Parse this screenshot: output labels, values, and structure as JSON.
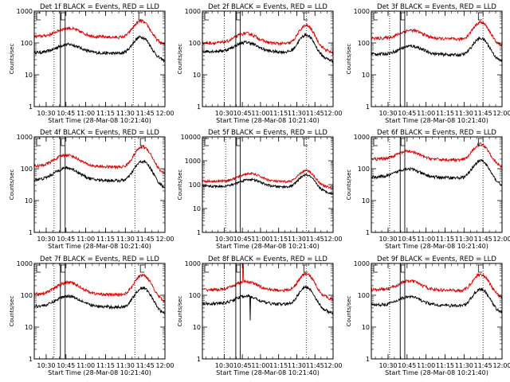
{
  "colors": {
    "background": "#ffffff",
    "axes": "#000000",
    "events": "#000000",
    "lld": "#e00000"
  },
  "chart_data": [
    {
      "id": "det1",
      "type": "line",
      "title": "Det 1f BLACK = Events, RED = LLD",
      "xlabel": "Start Time (28-Mar-08 10:21:40)",
      "ylabel": "Counts/sec",
      "y_scale": "log",
      "ylim": [
        1,
        1000
      ],
      "yticks": [
        "1",
        "10",
        "100",
        "1000"
      ],
      "xlim": [
        10.35,
        12.0
      ],
      "xticks": [
        "10:30",
        "10:45",
        "11:00",
        "11:15",
        "11:30",
        "11:45",
        "12:00"
      ],
      "dotted_markers": [
        10.6,
        11.6
      ],
      "boxed_interval": [
        10.68,
        10.74
      ],
      "flare_peak": 11.7,
      "series": [
        {
          "name": "Events",
          "color": "#000000",
          "base": 50,
          "bump_t": 10.78,
          "bump_amp": 40,
          "peak_amp": 110,
          "spike": null
        },
        {
          "name": "LLD",
          "color": "#e00000",
          "base": 160,
          "bump_t": 10.78,
          "bump_amp": 130,
          "peak_amp": 340,
          "spike": null
        }
      ]
    },
    {
      "id": "det2",
      "type": "line",
      "title": "Det 2f BLACK = Events, RED = LLD",
      "xlabel": "Start Time (28-Mar-08 10:21:40)",
      "ylabel": "Counts/sec",
      "y_scale": "log",
      "ylim": [
        1,
        1000
      ],
      "yticks": [
        "1",
        "10",
        "100",
        "1000"
      ],
      "xlim": [
        10.2,
        12.0
      ],
      "xticks": [
        "10:30",
        "10:45",
        "11:00",
        "11:15",
        "11:30",
        "11:45",
        "12:00"
      ],
      "dotted_markers": [
        10.5,
        11.63
      ],
      "boxed_interval": [
        10.66,
        10.72
      ],
      "flare_peak": 11.63,
      "series": [
        {
          "name": "Events",
          "color": "#000000",
          "base": 55,
          "bump_t": 10.8,
          "bump_amp": 50,
          "peak_amp": 130,
          "spike": null
        },
        {
          "name": "LLD",
          "color": "#e00000",
          "base": 100,
          "bump_t": 10.8,
          "bump_amp": 100,
          "peak_amp": 260,
          "spike": null
        }
      ]
    },
    {
      "id": "det3",
      "type": "line",
      "title": "Det 3f BLACK = Events, RED = LLD",
      "xlabel": "Start Time (28-Mar-08 10:21:40)",
      "ylabel": "Counts/sec",
      "y_scale": "log",
      "ylim": [
        1,
        1000
      ],
      "yticks": [
        "1",
        "10",
        "100",
        "1000"
      ],
      "xlim": [
        10.28,
        12.0
      ],
      "xticks": [
        "10:30",
        "10:45",
        "11:00",
        "11:15",
        "11:30",
        "11:45",
        "12:00"
      ],
      "dotted_markers": [
        10.52,
        11.75
      ],
      "boxed_interval": [
        10.66,
        10.72
      ],
      "flare_peak": 11.72,
      "series": [
        {
          "name": "Events",
          "color": "#000000",
          "base": 45,
          "bump_t": 10.8,
          "bump_amp": 35,
          "peak_amp": 100,
          "spike": null
        },
        {
          "name": "LLD",
          "color": "#e00000",
          "base": 140,
          "bump_t": 10.8,
          "bump_amp": 110,
          "peak_amp": 320,
          "spike": null
        }
      ]
    },
    {
      "id": "det4",
      "type": "line",
      "title": "Det 4f BLACK = Events, RED = LLD",
      "xlabel": "Start Time (28-Mar-08 10:21:40)",
      "ylabel": "Counts/sec",
      "y_scale": "log",
      "ylim": [
        1,
        1000
      ],
      "yticks": [
        "1",
        "10",
        "100",
        "1000"
      ],
      "xlim": [
        10.35,
        12.0
      ],
      "xticks": [
        "10:30",
        "10:45",
        "11:00",
        "11:15",
        "11:30",
        "11:45",
        "12:00"
      ],
      "dotted_markers": [
        10.6,
        11.62
      ],
      "boxed_interval": [
        10.68,
        10.74
      ],
      "flare_peak": 11.72,
      "series": [
        {
          "name": "Events",
          "color": "#000000",
          "base": 45,
          "bump_t": 10.76,
          "bump_amp": 60,
          "peak_amp": 130,
          "spike": null
        },
        {
          "name": "LLD",
          "color": "#e00000",
          "base": 120,
          "bump_t": 10.76,
          "bump_amp": 150,
          "peak_amp": 380,
          "spike": null
        }
      ]
    },
    {
      "id": "det5",
      "type": "line",
      "title": "Det 5f BLACK = Events, RED = LLD",
      "xlabel": "Start Time (28-Mar-08 10:21:40)",
      "ylabel": "Counts/sec",
      "y_scale": "log",
      "ylim": [
        1,
        10000
      ],
      "yticks": [
        "1",
        "10",
        "100",
        "1000",
        "10000"
      ],
      "xlim": [
        10.2,
        12.0
      ],
      "xticks": [
        "10:30",
        "10:45",
        "11:00",
        "11:15",
        "11:30",
        "11:45",
        "12:00"
      ],
      "dotted_markers": [
        10.52,
        11.63
      ],
      "boxed_interval": [
        10.66,
        10.72
      ],
      "flare_peak": 11.63,
      "series": [
        {
          "name": "Events",
          "color": "#000000",
          "base": 85,
          "bump_t": 10.85,
          "bump_amp": 80,
          "peak_amp": 180,
          "spike": null
        },
        {
          "name": "LLD",
          "color": "#e00000",
          "base": 140,
          "bump_t": 10.85,
          "bump_amp": 150,
          "peak_amp": 260,
          "spike": null
        }
      ]
    },
    {
      "id": "det6",
      "type": "line",
      "title": "Det 6f BLACK = Events, RED = LLD",
      "xlabel": "Start Time (28-Mar-08 10:21:40)",
      "ylabel": "Counts/sec",
      "y_scale": "log",
      "ylim": [
        1,
        1000
      ],
      "yticks": [
        "1",
        "10",
        "100",
        "1000"
      ],
      "xlim": [
        10.28,
        12.0
      ],
      "xticks": [
        "10:30",
        "10:45",
        "11:00",
        "11:15",
        "11:30",
        "11:45",
        "12:00"
      ],
      "dotted_markers": [
        10.52,
        11.75
      ],
      "boxed_interval": [
        10.66,
        10.72
      ],
      "flare_peak": 11.72,
      "series": [
        {
          "name": "Events",
          "color": "#000000",
          "base": 55,
          "bump_t": 10.76,
          "bump_amp": 45,
          "peak_amp": 130,
          "spike": null
        },
        {
          "name": "LLD",
          "color": "#e00000",
          "base": 200,
          "bump_t": 10.76,
          "bump_amp": 150,
          "peak_amp": 420,
          "spike": null
        }
      ]
    },
    {
      "id": "det7",
      "type": "line",
      "title": "Det 7f BLACK = Events, RED = LLD",
      "xlabel": "Start Time (28-Mar-08 10:21:40)",
      "ylabel": "Counts/sec",
      "y_scale": "log",
      "ylim": [
        1,
        1000
      ],
      "yticks": [
        "1",
        "10",
        "100",
        "1000"
      ],
      "xlim": [
        10.35,
        12.0
      ],
      "xticks": [
        "10:30",
        "10:45",
        "11:00",
        "11:15",
        "11:30",
        "11:45",
        "12:00"
      ],
      "dotted_markers": [
        10.6,
        11.62
      ],
      "boxed_interval": [
        10.68,
        10.74
      ],
      "flare_peak": 11.72,
      "series": [
        {
          "name": "Events",
          "color": "#000000",
          "base": 45,
          "bump_t": 10.78,
          "bump_amp": 50,
          "peak_amp": 130,
          "spike": null
        },
        {
          "name": "LLD",
          "color": "#e00000",
          "base": 110,
          "bump_t": 10.78,
          "bump_amp": 140,
          "peak_amp": 330,
          "spike": null
        }
      ]
    },
    {
      "id": "det8",
      "type": "line",
      "title": "Det 8f BLACK = Events, RED = LLD",
      "xlabel": "Start Time (28-Mar-08 10:21:40)",
      "ylabel": "Counts/sec",
      "y_scale": "log",
      "ylim": [
        1,
        1000
      ],
      "yticks": [
        "1",
        "10",
        "100",
        "1000"
      ],
      "xlim": [
        10.2,
        12.0
      ],
      "xticks": [
        "10:30",
        "10:45",
        "11:00",
        "11:15",
        "11:30",
        "11:45",
        "12:00"
      ],
      "dotted_markers": [
        10.5,
        11.63
      ],
      "boxed_interval": [
        10.66,
        10.72
      ],
      "flare_peak": 11.63,
      "series": [
        {
          "name": "Events",
          "color": "#000000",
          "base": 55,
          "bump_t": 10.8,
          "bump_amp": 40,
          "peak_amp": 130,
          "spike": {
            "t": 10.86,
            "to": 16
          }
        },
        {
          "name": "LLD",
          "color": "#e00000",
          "base": 150,
          "bump_t": 10.8,
          "bump_amp": 120,
          "peak_amp": 330,
          "spike": {
            "t": 10.76,
            "to": 1000
          }
        }
      ]
    },
    {
      "id": "det9",
      "type": "line",
      "title": "Det 9f BLACK = Events, RED = LLD",
      "xlabel": "Start Time (28-Mar-08 10:21:40)",
      "ylabel": "Counts/sec",
      "y_scale": "log",
      "ylim": [
        1,
        1000
      ],
      "yticks": [
        "1",
        "10",
        "100",
        "1000"
      ],
      "xlim": [
        10.28,
        12.0
      ],
      "xticks": [
        "10:30",
        "10:45",
        "11:00",
        "11:15",
        "11:30",
        "11:45",
        "12:00"
      ],
      "dotted_markers": [
        10.52,
        11.75
      ],
      "boxed_interval": [
        10.66,
        10.72
      ],
      "flare_peak": 11.72,
      "series": [
        {
          "name": "Events",
          "color": "#000000",
          "base": 50,
          "bump_t": 10.78,
          "bump_amp": 40,
          "peak_amp": 110,
          "spike": null
        },
        {
          "name": "LLD",
          "color": "#e00000",
          "base": 150,
          "bump_t": 10.78,
          "bump_amp": 130,
          "peak_amp": 320,
          "spike": null
        }
      ]
    }
  ]
}
